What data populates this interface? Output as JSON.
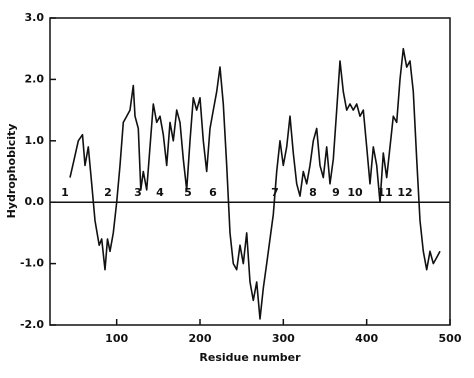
{
  "chart_data": {
    "type": "line",
    "x_label": "Residue number",
    "y_label": "Hydrophobicity",
    "x": [
      44,
      49,
      54,
      59,
      62,
      66,
      70,
      74,
      79,
      82,
      86,
      89,
      92,
      96,
      100,
      104,
      108,
      112,
      116,
      120,
      122,
      126,
      129,
      132,
      136,
      140,
      144,
      148,
      152,
      156,
      160,
      164,
      168,
      172,
      176,
      180,
      184,
      188,
      192,
      196,
      200,
      204,
      208,
      212,
      216,
      220,
      224,
      228,
      232,
      236,
      240,
      244,
      248,
      252,
      256,
      260,
      264,
      268,
      272,
      276,
      280,
      284,
      288,
      292,
      296,
      300,
      304,
      308,
      312,
      316,
      320,
      324,
      328,
      332,
      336,
      340,
      344,
      348,
      352,
      356,
      360,
      364,
      368,
      372,
      376,
      380,
      384,
      388,
      392,
      396,
      400,
      404,
      408,
      412,
      416,
      420,
      424,
      428,
      432,
      436,
      440,
      444,
      448,
      452,
      456,
      460,
      464,
      468,
      472,
      476,
      480,
      484,
      488
    ],
    "series": [
      {
        "name": "Hydrophobicity",
        "color": "#111111",
        "values": [
          0.4,
          0.7,
          1.0,
          1.1,
          0.6,
          0.9,
          0.3,
          -0.3,
          -0.7,
          -0.6,
          -1.1,
          -0.6,
          -0.8,
          -0.5,
          0.0,
          0.6,
          1.3,
          1.4,
          1.5,
          1.9,
          1.4,
          1.2,
          0.2,
          0.5,
          0.2,
          0.9,
          1.6,
          1.3,
          1.4,
          1.1,
          0.6,
          1.3,
          1.0,
          1.5,
          1.3,
          0.7,
          0.2,
          1.0,
          1.7,
          1.5,
          1.7,
          1.0,
          0.5,
          1.2,
          1.5,
          1.8,
          2.2,
          1.6,
          0.6,
          -0.5,
          -1.0,
          -1.1,
          -0.7,
          -1.0,
          -0.5,
          -1.3,
          -1.6,
          -1.3,
          -1.9,
          -1.4,
          -1.0,
          -0.6,
          -0.2,
          0.5,
          1.0,
          0.6,
          0.9,
          1.4,
          0.8,
          0.3,
          0.1,
          0.5,
          0.3,
          0.6,
          1.0,
          1.2,
          0.6,
          0.4,
          0.9,
          0.3,
          0.7,
          1.5,
          2.3,
          1.8,
          1.5,
          1.6,
          1.5,
          1.6,
          1.4,
          1.5,
          0.9,
          0.3,
          0.9,
          0.6,
          0.0,
          0.8,
          0.4,
          0.9,
          1.4,
          1.3,
          2.0,
          2.5,
          2.2,
          2.3,
          1.8,
          0.7,
          -0.3,
          -0.8,
          -1.1,
          -0.8,
          -1.0,
          -0.9,
          -0.8
        ]
      }
    ],
    "annotations": [
      "1",
      "2",
      "3",
      "4",
      "5",
      "6",
      "7",
      "8",
      "9",
      "10",
      "11",
      "12"
    ],
    "xlim": [
      20,
      500
    ],
    "xticks": [
      100,
      200,
      300,
      400,
      500
    ],
    "ylim": [
      -2,
      3
    ],
    "yticks": [
      {
        "value": -2,
        "label": "-2.0"
      },
      {
        "value": -1,
        "label": "-1.0"
      },
      {
        "value": 0,
        "label": "0.0"
      },
      {
        "value": 1,
        "label": "1.0"
      },
      {
        "value": 2,
        "label": "2.0"
      },
      {
        "value": 3,
        "label": "3.0"
      }
    ]
  }
}
